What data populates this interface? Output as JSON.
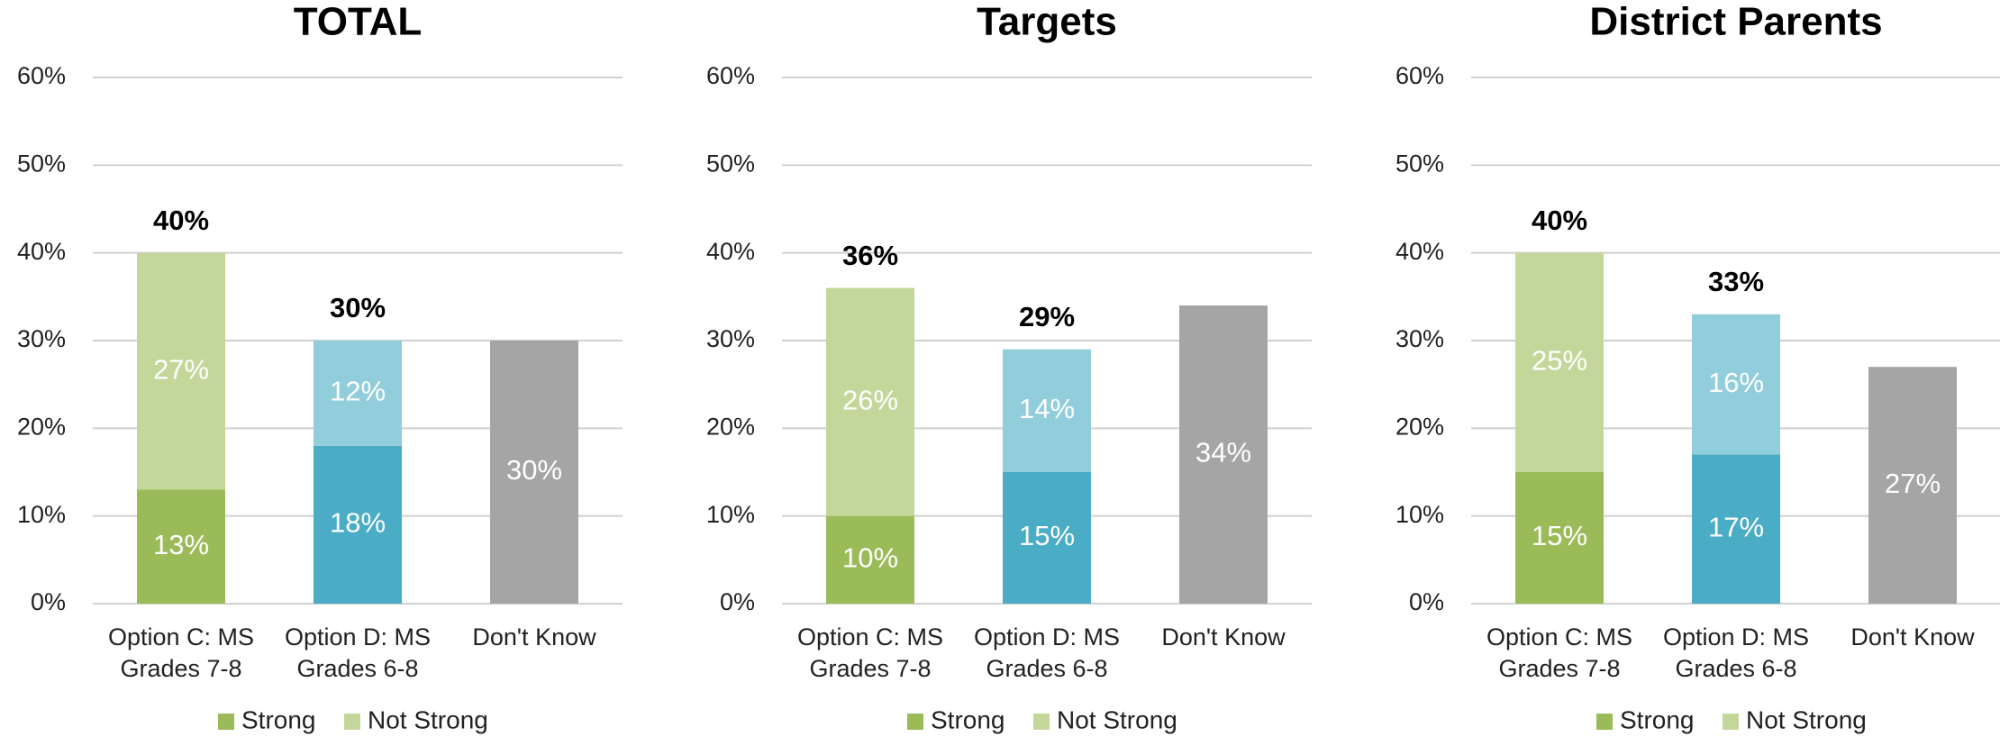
{
  "chart_data": [
    {
      "type": "stacked_bar",
      "title": "TOTAL",
      "categories": [
        "Option C: MS Grades 7-8",
        "Option D: MS Grades 6-8",
        "Don't Know"
      ],
      "series": [
        {
          "name": "Strong",
          "color": "#9bbb59",
          "colors": [
            "#9bbb59",
            "#4bacc6",
            "#a5a5a5"
          ],
          "values": [
            13,
            18,
            30
          ],
          "value_labels": [
            "13%",
            "18%",
            "30%"
          ]
        },
        {
          "name": "Not Strong",
          "color": "#c4d79b",
          "colors": [
            "#c4d79b",
            "#92cddc",
            null
          ],
          "values": [
            27,
            12,
            null
          ],
          "value_labels": [
            "27%",
            "12%",
            null
          ]
        }
      ],
      "totals": [
        40,
        30,
        null
      ],
      "total_labels": [
        "40%",
        "30%",
        null
      ],
      "ylim": [
        0,
        60
      ],
      "yticks": [
        {
          "value": 0,
          "label": "0%"
        },
        {
          "value": 10,
          "label": "10%"
        },
        {
          "value": 20,
          "label": "20%"
        },
        {
          "value": 30,
          "label": "30%"
        },
        {
          "value": 40,
          "label": "40%"
        },
        {
          "value": 50,
          "label": "50%"
        },
        {
          "value": 60,
          "label": "60%"
        }
      ],
      "grid": true,
      "legend": "bottom"
    },
    {
      "type": "stacked_bar",
      "title": "Targets",
      "categories": [
        "Option C: MS Grades 7-8",
        "Option D: MS Grades 6-8",
        "Don't Know"
      ],
      "series": [
        {
          "name": "Strong",
          "color": "#9bbb59",
          "colors": [
            "#9bbb59",
            "#4bacc6",
            "#a5a5a5"
          ],
          "values": [
            10,
            15,
            34
          ],
          "value_labels": [
            "10%",
            "15%",
            "34%"
          ]
        },
        {
          "name": "Not Strong",
          "color": "#c4d79b",
          "colors": [
            "#c4d79b",
            "#92cddc",
            null
          ],
          "values": [
            26,
            14,
            null
          ],
          "value_labels": [
            "26%",
            "14%",
            null
          ]
        }
      ],
      "totals": [
        36,
        29,
        null
      ],
      "total_labels": [
        "36%",
        "29%",
        null
      ],
      "ylim": [
        0,
        60
      ],
      "yticks": [
        {
          "value": 0,
          "label": "0%"
        },
        {
          "value": 10,
          "label": "10%"
        },
        {
          "value": 20,
          "label": "20%"
        },
        {
          "value": 30,
          "label": "30%"
        },
        {
          "value": 40,
          "label": "40%"
        },
        {
          "value": 50,
          "label": "50%"
        },
        {
          "value": 60,
          "label": "60%"
        }
      ],
      "grid": true,
      "legend": "bottom"
    },
    {
      "type": "stacked_bar",
      "title": "District Parents",
      "categories": [
        "Option C: MS Grades 7-8",
        "Option D: MS Grades 6-8",
        "Don't Know"
      ],
      "series": [
        {
          "name": "Strong",
          "color": "#9bbb59",
          "colors": [
            "#9bbb59",
            "#4bacc6",
            "#a5a5a5"
          ],
          "values": [
            15,
            17,
            27
          ],
          "value_labels": [
            "15%",
            "17%",
            "27%"
          ]
        },
        {
          "name": "Not Strong",
          "color": "#c4d79b",
          "colors": [
            "#c4d79b",
            "#92cddc",
            null
          ],
          "values": [
            25,
            16,
            null
          ],
          "value_labels": [
            "25%",
            "16%",
            null
          ]
        }
      ],
      "totals": [
        40,
        33,
        null
      ],
      "total_labels": [
        "40%",
        "33%",
        null
      ],
      "ylim": [
        0,
        60
      ],
      "yticks": [
        {
          "value": 0,
          "label": "0%"
        },
        {
          "value": 10,
          "label": "10%"
        },
        {
          "value": 20,
          "label": "20%"
        },
        {
          "value": 30,
          "label": "30%"
        },
        {
          "value": 40,
          "label": "40%"
        },
        {
          "value": 50,
          "label": "50%"
        },
        {
          "value": 60,
          "label": "60%"
        }
      ],
      "grid": true,
      "legend": "bottom"
    }
  ]
}
